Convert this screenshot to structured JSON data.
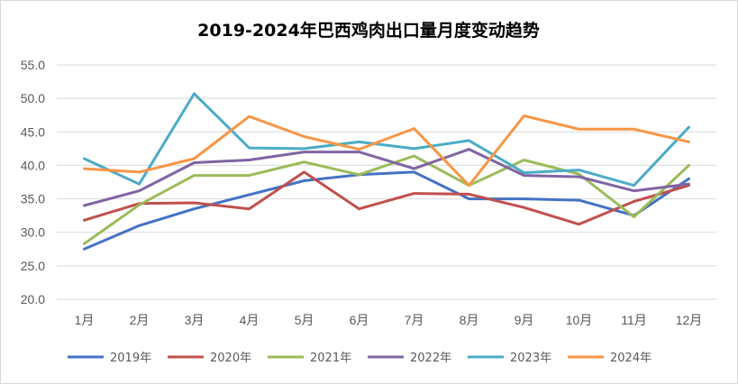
{
  "chart_data": {
    "type": "line",
    "title": "2019-2024年巴西鸡肉出口量月度变动趋势",
    "xlabel": "",
    "ylabel": "",
    "categories": [
      "1月",
      "2月",
      "3月",
      "4月",
      "5月",
      "6月",
      "7月",
      "8月",
      "9月",
      "10月",
      "11月",
      "12月"
    ],
    "ylim": [
      20.0,
      55.0
    ],
    "yticks": [
      "20.0",
      "25.0",
      "30.0",
      "35.0",
      "40.0",
      "45.0",
      "50.0",
      "55.0"
    ],
    "grid": true,
    "legend": "bottom",
    "series": [
      {
        "name": "2019年",
        "color": "#4472c4",
        "values": [
          27.5,
          31.0,
          33.5,
          35.6,
          37.7,
          38.6,
          39.0,
          35.0,
          35.0,
          34.8,
          32.5,
          38.0
        ]
      },
      {
        "name": "2020年",
        "color": "#c0504d",
        "values": [
          31.8,
          34.3,
          34.4,
          33.5,
          39.0,
          33.5,
          35.8,
          35.7,
          33.7,
          31.2,
          34.6,
          37.0
        ]
      },
      {
        "name": "2021年",
        "color": "#9bbb59",
        "values": [
          28.3,
          34.1,
          38.5,
          38.5,
          40.5,
          38.6,
          41.4,
          37.0,
          40.8,
          38.7,
          32.3,
          40.0
        ]
      },
      {
        "name": "2022年",
        "color": "#8064a2",
        "values": [
          34.0,
          36.2,
          40.4,
          40.8,
          42.0,
          42.0,
          39.5,
          42.4,
          38.5,
          38.3,
          36.2,
          37.2
        ]
      },
      {
        "name": "2023年",
        "color": "#4bacc6",
        "values": [
          41.0,
          37.2,
          50.7,
          42.6,
          42.5,
          43.5,
          42.5,
          43.7,
          38.9,
          39.3,
          37.0,
          45.7
        ]
      },
      {
        "name": "2024年",
        "color": "#f79646",
        "values": [
          39.5,
          39.0,
          41.0,
          47.3,
          44.3,
          42.4,
          45.5,
          37.0,
          47.4,
          45.4,
          45.4,
          43.5
        ]
      }
    ]
  }
}
